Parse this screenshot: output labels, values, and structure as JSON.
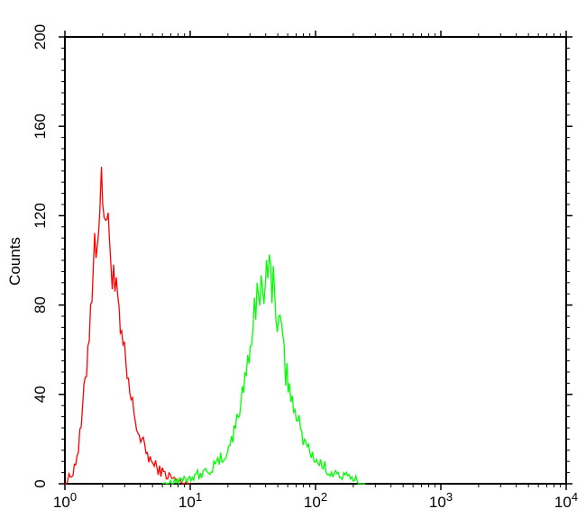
{
  "chart_data": {
    "type": "line",
    "title": "",
    "xlabel": "",
    "ylabel": "Counts",
    "x_scale": "log",
    "xlim": [
      1,
      10000
    ],
    "ylim": [
      0,
      200
    ],
    "x_ticks": [
      1,
      10,
      100,
      1000,
      10000
    ],
    "x_tick_labels": [
      {
        "base": "10",
        "exp": "0"
      },
      {
        "base": "10",
        "exp": "1"
      },
      {
        "base": "10",
        "exp": "2"
      },
      {
        "base": "10",
        "exp": "3"
      },
      {
        "base": "10",
        "exp": "4"
      }
    ],
    "y_ticks": [
      0,
      40,
      80,
      120,
      160,
      200
    ],
    "y_tick_labels": [
      "0",
      "40",
      "80",
      "120",
      "160",
      "200"
    ],
    "grid": false,
    "series": [
      {
        "color": "#ff0000",
        "points": [
          [
            1.0,
            0
          ],
          [
            1.1,
            3
          ],
          [
            1.2,
            8
          ],
          [
            1.3,
            18
          ],
          [
            1.4,
            35
          ],
          [
            1.5,
            55
          ],
          [
            1.6,
            80
          ],
          [
            1.7,
            100
          ],
          [
            1.8,
            115
          ],
          [
            1.9,
            125
          ],
          [
            2.0,
            130
          ],
          [
            2.1,
            124
          ],
          [
            2.2,
            112
          ],
          [
            2.4,
            98
          ],
          [
            2.6,
            80
          ],
          [
            2.8,
            66
          ],
          [
            3.0,
            55
          ],
          [
            3.3,
            40
          ],
          [
            3.6,
            30
          ],
          [
            4.0,
            20
          ],
          [
            4.5,
            14
          ],
          [
            5.0,
            9
          ],
          [
            6.0,
            5
          ],
          [
            7.0,
            3
          ],
          [
            8.0,
            1
          ],
          [
            10.0,
            0
          ]
        ]
      },
      {
        "color": "#00ff00",
        "points": [
          [
            6.0,
            0
          ],
          [
            8.0,
            2
          ],
          [
            10.0,
            3
          ],
          [
            13.0,
            5
          ],
          [
            16.0,
            8
          ],
          [
            20.0,
            15
          ],
          [
            23.0,
            25
          ],
          [
            26.0,
            40
          ],
          [
            29.0,
            58
          ],
          [
            32.0,
            72
          ],
          [
            35.0,
            84
          ],
          [
            38.0,
            92
          ],
          [
            41.0,
            95
          ],
          [
            44.0,
            92
          ],
          [
            48.0,
            84
          ],
          [
            52.0,
            70
          ],
          [
            56.0,
            55
          ],
          [
            62.0,
            42
          ],
          [
            70.0,
            30
          ],
          [
            80.0,
            20
          ],
          [
            95.0,
            12
          ],
          [
            120.0,
            7
          ],
          [
            150.0,
            4
          ],
          [
            200.0,
            2
          ],
          [
            250.0,
            0
          ]
        ]
      }
    ]
  }
}
